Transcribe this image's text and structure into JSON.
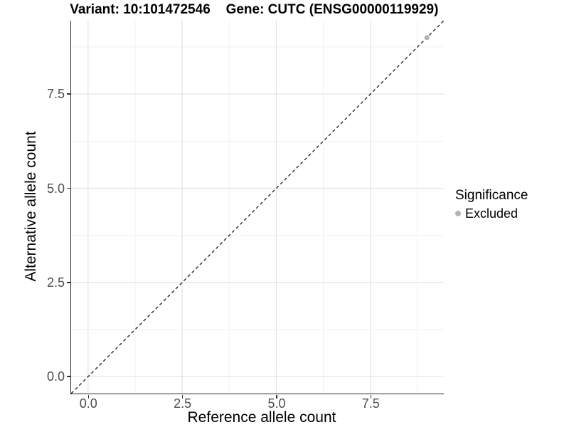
{
  "chart_data": {
    "type": "scatter",
    "titles": {
      "left": "Variant: 10:101472546",
      "right": "Gene: CUTC (ENSG00000119929)"
    },
    "xlabel": "Reference allele count",
    "ylabel": "Alternative allele count",
    "xlim": [
      -0.45,
      9.45
    ],
    "ylim": [
      -0.45,
      9.45
    ],
    "x_ticks": [
      {
        "value": 0,
        "label": "0.0"
      },
      {
        "value": 2.5,
        "label": "2.5"
      },
      {
        "value": 5,
        "label": "5.0"
      },
      {
        "value": 7.5,
        "label": "7.5"
      }
    ],
    "y_ticks": [
      {
        "value": 0,
        "label": "0.0"
      },
      {
        "value": 2.5,
        "label": "2.5"
      },
      {
        "value": 5,
        "label": "5.0"
      },
      {
        "value": 7.5,
        "label": "7.5"
      }
    ],
    "x_minor_ticks": [
      1.25,
      3.75,
      6.25,
      8.75
    ],
    "y_minor_ticks": [
      1.25,
      3.75,
      6.25,
      8.75
    ],
    "grid": "major+minor",
    "reference_line": {
      "type": "identity",
      "style": "dashed",
      "x1": -0.45,
      "y1": -0.45,
      "x2": 9.45,
      "y2": 9.45,
      "color": "#1a1a1a"
    },
    "series": [
      {
        "name": "Excluded",
        "color": "#b4b4b4",
        "points": [
          [
            9,
            9
          ]
        ]
      }
    ],
    "legend": {
      "title": "Significance",
      "position": "right",
      "entries": [
        {
          "label": "Excluded",
          "color": "#b4b4b4"
        }
      ]
    }
  },
  "colors": {
    "background": "#ffffff",
    "grid_major": "#e3e3e3",
    "grid_minor": "#f1f1f1",
    "axis_line": "#2b2b2b",
    "tick_mark": "#333333",
    "tick_label": "#4d4d4d",
    "title_text": "#000000",
    "point": "#b4b4b4"
  }
}
